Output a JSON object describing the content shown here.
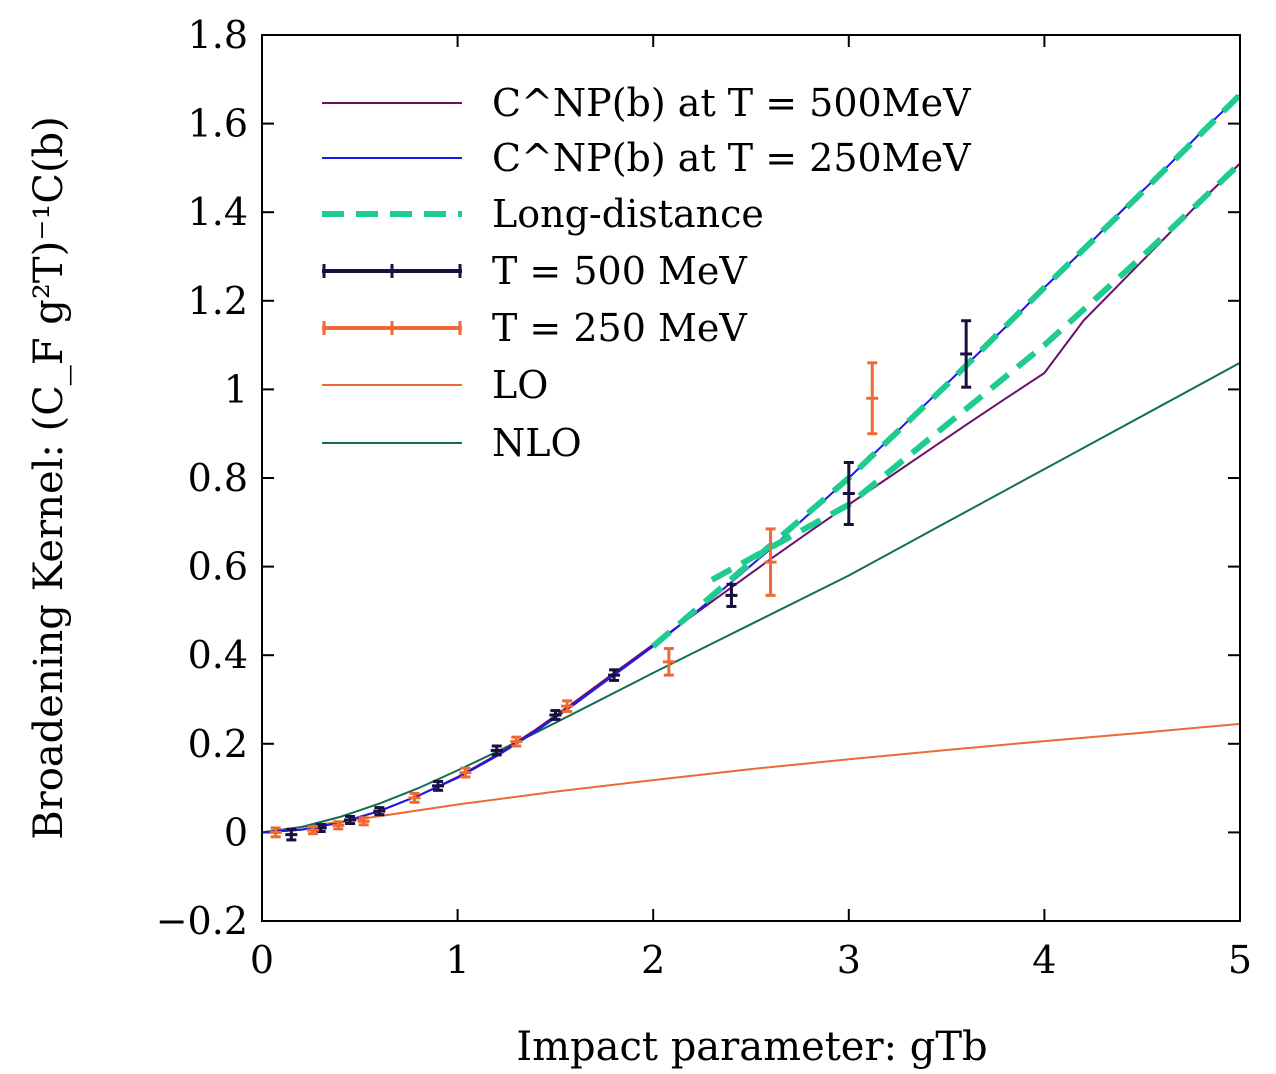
{
  "chart_data": {
    "type": "line",
    "xlabel": "Impact parameter: gTb",
    "ylabel": "Broadening Kernel: (C_F g²T)⁻¹C(b)",
    "xlim": [
      0,
      5
    ],
    "ylim": [
      -0.2,
      1.8
    ],
    "xticks": [
      0,
      1,
      2,
      3,
      4,
      5
    ],
    "yticks": [
      -0.2,
      0,
      0.2,
      0.4,
      0.6,
      0.8,
      1,
      1.2,
      1.4,
      1.6,
      1.8
    ],
    "ytick_labels": [
      "−0.2",
      "0",
      "0.2",
      "0.4",
      "0.6",
      "0.8",
      "1",
      "1.2",
      "1.4",
      "1.6",
      "1.8"
    ],
    "legend_position": "top-left",
    "series": [
      {
        "name": "C^NP(b) at T = 500MeV",
        "kind": "line",
        "color": "#6b0f6b",
        "x": [
          0,
          0.2,
          0.4,
          0.6,
          0.8,
          1.0,
          1.2,
          1.4,
          1.6,
          1.8,
          2.0,
          2.2,
          2.4,
          2.6,
          2.8,
          3.0,
          3.2,
          3.4,
          3.6,
          3.8,
          4.0,
          4.2,
          4.4,
          4.6,
          4.8,
          5.0
        ],
        "y": [
          0,
          0.006,
          0.022,
          0.048,
          0.083,
          0.125,
          0.175,
          0.232,
          0.295,
          0.36,
          0.424,
          0.489,
          0.553,
          0.617,
          0.679,
          0.74,
          0.8,
          0.86,
          0.92,
          0.979,
          1.037,
          1.155,
          1.245,
          1.335,
          1.425,
          1.51
        ]
      },
      {
        "name": "C^NP(b) at T = 250MeV",
        "kind": "line",
        "color": "#1a1aee",
        "x": [
          0,
          0.2,
          0.4,
          0.6,
          0.8,
          1.0,
          1.2,
          1.4,
          1.6,
          1.8,
          2.0,
          2.2,
          2.4,
          2.6,
          2.8,
          3.0,
          3.2,
          3.4,
          3.6,
          3.8,
          4.0,
          4.2,
          4.4,
          4.6,
          4.8,
          5.0
        ],
        "y": [
          0,
          0.006,
          0.022,
          0.048,
          0.083,
          0.123,
          0.172,
          0.228,
          0.29,
          0.355,
          0.42,
          0.49,
          0.565,
          0.64,
          0.72,
          0.8,
          0.885,
          0.97,
          1.055,
          1.14,
          1.23,
          1.315,
          1.405,
          1.49,
          1.58,
          1.665
        ]
      },
      {
        "name": "Long-distance",
        "kind": "dashed",
        "color": "#1fcc8f",
        "segments": [
          {
            "x": [
              2.0,
              2.5,
              3.0,
              3.5,
              4.0,
              4.5,
              5.0
            ],
            "y": [
              0.42,
              0.61,
              0.8,
              1.01,
              1.23,
              1.445,
              1.665
            ]
          },
          {
            "x": [
              2.3,
              3.0,
              3.5,
              4.0,
              4.5,
              5.0
            ],
            "y": [
              0.57,
              0.74,
              0.92,
              1.1,
              1.3,
              1.51
            ]
          }
        ]
      },
      {
        "name": "T = 500 MeV",
        "kind": "errorbar",
        "color": "#1a1040",
        "x": [
          0.15,
          0.3,
          0.45,
          0.6,
          0.9,
          1.2,
          1.5,
          1.8,
          2.4,
          3.0,
          3.6
        ],
        "y": [
          -0.005,
          0.01,
          0.028,
          0.048,
          0.105,
          0.185,
          0.265,
          0.355,
          0.535,
          0.765,
          1.08
        ],
        "err": [
          0.012,
          0.008,
          0.008,
          0.008,
          0.01,
          0.01,
          0.01,
          0.012,
          0.025,
          0.07,
          0.075
        ]
      },
      {
        "name": "T = 250 MeV",
        "kind": "errorbar",
        "color": "#ee6a35",
        "x": [
          0.07,
          0.26,
          0.39,
          0.52,
          0.78,
          1.04,
          1.3,
          1.56,
          2.08,
          2.6,
          3.12
        ],
        "y": [
          0.0,
          0.005,
          0.016,
          0.025,
          0.078,
          0.135,
          0.205,
          0.285,
          0.385,
          0.61,
          0.98
        ],
        "err": [
          0.01,
          0.008,
          0.008,
          0.008,
          0.01,
          0.01,
          0.01,
          0.012,
          0.03,
          0.075,
          0.08
        ]
      },
      {
        "name": "LO",
        "kind": "line",
        "color": "#ee6a35",
        "x": [
          0,
          0.5,
          1.0,
          1.5,
          2.0,
          2.5,
          3.0,
          3.5,
          4.0,
          4.5,
          5.0
        ],
        "y": [
          0,
          0.03,
          0.063,
          0.092,
          0.118,
          0.143,
          0.165,
          0.186,
          0.206,
          0.225,
          0.245
        ]
      },
      {
        "name": "NLO",
        "kind": "line",
        "color": "#0e7050",
        "x": [
          0,
          0.2,
          0.4,
          0.6,
          0.8,
          1.0,
          1.2,
          1.4,
          1.6,
          1.8,
          2.0,
          2.5,
          3.0,
          3.5,
          4.0,
          4.5,
          5.0
        ],
        "y": [
          0,
          0.012,
          0.035,
          0.065,
          0.1,
          0.14,
          0.182,
          0.225,
          0.27,
          0.315,
          0.36,
          0.47,
          0.58,
          0.7,
          0.82,
          0.94,
          1.06
        ]
      }
    ]
  }
}
